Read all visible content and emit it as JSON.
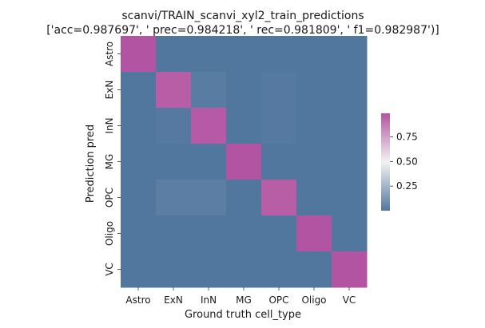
{
  "chart_data": {
    "type": "heatmap",
    "title_line1": "scanvi/TRAIN_scanvi_xyl2_train_predictions",
    "title_line2": "['acc=0.987697', '  prec=0.984218', ' rec=0.981809', ' f1=0.982987')]",
    "xlabel": "Ground truth cell_type",
    "ylabel": "Prediction pred",
    "x_categories": [
      "Astro",
      "ExN",
      "InN",
      "MG",
      "OPC",
      "Oligo",
      "VC"
    ],
    "y_categories": [
      "Astro",
      "ExN",
      "InN",
      "MG",
      "OPC",
      "Oligo",
      "VC"
    ],
    "values": [
      [
        0.99,
        0.0,
        0.0,
        0.0,
        0.0,
        0.0,
        0.0
      ],
      [
        0.0,
        0.96,
        0.02,
        0.0,
        0.01,
        0.0,
        0.0
      ],
      [
        0.0,
        0.01,
        0.97,
        0.0,
        0.01,
        0.0,
        0.0
      ],
      [
        0.0,
        0.0,
        0.0,
        0.99,
        0.0,
        0.0,
        0.0
      ],
      [
        0.0,
        0.03,
        0.03,
        0.0,
        0.96,
        0.0,
        0.0
      ],
      [
        0.0,
        0.0,
        0.0,
        0.0,
        0.0,
        0.99,
        0.0
      ],
      [
        0.0,
        0.0,
        0.0,
        0.0,
        0.0,
        0.0,
        0.99
      ]
    ],
    "colorbar": {
      "ticks": [
        "0.25",
        "0.50",
        "0.75"
      ],
      "tick_values": [
        0.25,
        0.5,
        0.75
      ],
      "vmin": 0.0,
      "vmax": 0.99
    },
    "colormap": {
      "low": "#52779f",
      "mid": "#f2f2f2",
      "high": "#b354a2"
    },
    "grid": false,
    "legend": "colorbar-right"
  }
}
